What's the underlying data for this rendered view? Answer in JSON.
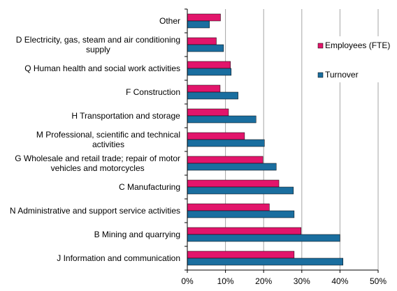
{
  "chart_data": {
    "type": "bar",
    "orientation": "horizontal",
    "categories": [
      "Other",
      "D  Electricity, gas, steam and air conditioning\nsupply",
      "Q  Human health and social work activities",
      "F  Construction",
      "H  Transportation and storage",
      "M  Professional, scientific and technical\nactivities",
      "G  Wholesale and retail trade; repair of motor\nvehicles and motorcycles",
      "C  Manufacturing",
      "N  Administrative and support service activities",
      "B  Mining and quarrying",
      "J  Information and communication"
    ],
    "series": [
      {
        "name": "Employees (FTE)",
        "color": "#e2156b",
        "values": [
          8.7,
          7.6,
          11.3,
          8.6,
          10.8,
          15.0,
          19.8,
          24.0,
          21.5,
          29.8,
          28.0
        ]
      },
      {
        "name": "Turnover",
        "color": "#1a6e9f",
        "values": [
          5.8,
          9.5,
          11.5,
          13.3,
          18.0,
          20.2,
          23.3,
          27.8,
          28.0,
          40.0,
          40.8
        ]
      }
    ],
    "xlim": [
      0,
      50
    ],
    "xticks": [
      "0%",
      "10%",
      "20%",
      "30%",
      "40%",
      "50%"
    ],
    "grid": true,
    "legend_position": "right"
  }
}
